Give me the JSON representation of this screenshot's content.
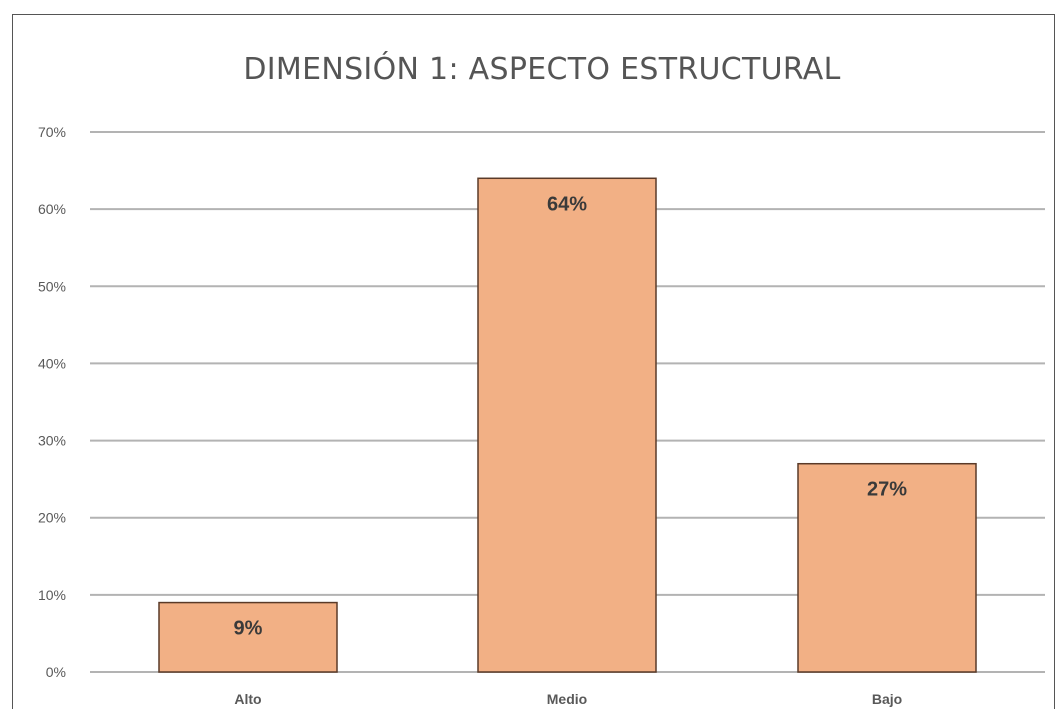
{
  "chart_data": {
    "type": "bar",
    "title": "DIMENSIÓN 1: ASPECTO ESTRUCTURAL",
    "categories": [
      "Alto",
      "Medio",
      "Bajo"
    ],
    "values": [
      9,
      64,
      27
    ],
    "data_labels": [
      "9%",
      "64%",
      "27%"
    ],
    "y_ticks": [
      "0%",
      "10%",
      "20%",
      "30%",
      "40%",
      "50%",
      "60%",
      "70%"
    ],
    "ylim": [
      0,
      70
    ],
    "xlabel": "",
    "ylabel": "",
    "grid": true,
    "legend": "none",
    "colors": {
      "bar_fill": "#F2B085",
      "bar_stroke": "#5A3A28",
      "gridline": "#b3b3b3",
      "axis_text": "#595959",
      "title_text": "#555555",
      "data_label_text": "#3a3a3a"
    }
  }
}
